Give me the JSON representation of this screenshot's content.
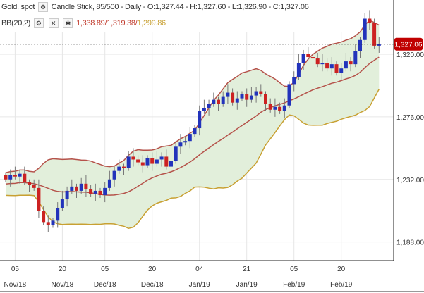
{
  "header": {
    "symbol": "Gold, spot",
    "chart_info": "Candle Stick, 85/500 - Daily - O:1,327.44 - H:1,327.60 - L:1,326.90 - C:1,327.06",
    "indicator": "BB(20,2)",
    "bb_upper": "1,338.89",
    "bb_mid": "1,319.38",
    "bb_sep": "/",
    "bb_lower": "1,299.86"
  },
  "last_price_label": "1,327.06",
  "colors": {
    "up": "#2233bb",
    "down": "#cc2222",
    "band": "#b5524a",
    "lower": "#c8a032",
    "fill": "#e2efdb"
  },
  "chart_data": {
    "type": "candlestick",
    "title": "Gold, spot",
    "y_ticks": [
      {
        "v": 1320,
        "label": "1,320.00"
      },
      {
        "v": 1276,
        "label": "1,276.00"
      },
      {
        "v": 1232,
        "label": "1,232.00"
      },
      {
        "v": 1188,
        "label": "1,188.00"
      }
    ],
    "x_ticks": [
      {
        "i": 2,
        "day": "05",
        "month": "Nov/18"
      },
      {
        "i": 12,
        "day": "20",
        "month": "Nov/18"
      },
      {
        "i": 21,
        "day": "05",
        "month": "Dec/18"
      },
      {
        "i": 31,
        "day": "20",
        "month": "Dec/18"
      },
      {
        "i": 41,
        "day": "04",
        "month": "Jan/19"
      },
      {
        "i": 51,
        "day": "21",
        "month": "Jan/19"
      },
      {
        "i": 61,
        "day": "05",
        "month": "Feb/19"
      },
      {
        "i": 71,
        "day": "20",
        "month": "Feb/19"
      }
    ],
    "seed": [
      1228,
      1232,
      1225,
      1230,
      1236,
      1233,
      1229,
      1222,
      1226,
      1231,
      1228,
      1225,
      1221,
      1224,
      1229,
      1232,
      1227,
      1230,
      1235
    ],
    "closes": [
      1232,
      1235,
      1234,
      1236,
      1230,
      1228,
      1226,
      1210,
      1202,
      1200,
      1203,
      1212,
      1218,
      1224,
      1227,
      1224,
      1229,
      1225,
      1222,
      1224,
      1221,
      1226,
      1232,
      1238,
      1241,
      1240,
      1248,
      1246,
      1244,
      1242,
      1247,
      1243,
      1246,
      1248,
      1241,
      1245,
      1255,
      1258,
      1259,
      1264,
      1268,
      1280,
      1282,
      1285,
      1288,
      1285,
      1290,
      1293,
      1286,
      1289,
      1292,
      1288,
      1291,
      1294,
      1292,
      1285,
      1281,
      1283,
      1280,
      1284,
      1299,
      1304,
      1314,
      1320,
      1318,
      1317,
      1313,
      1314,
      1310,
      1313,
      1307,
      1310,
      1315,
      1313,
      1322,
      1330,
      1345,
      1342,
      1326,
      1327.06
    ]
  }
}
